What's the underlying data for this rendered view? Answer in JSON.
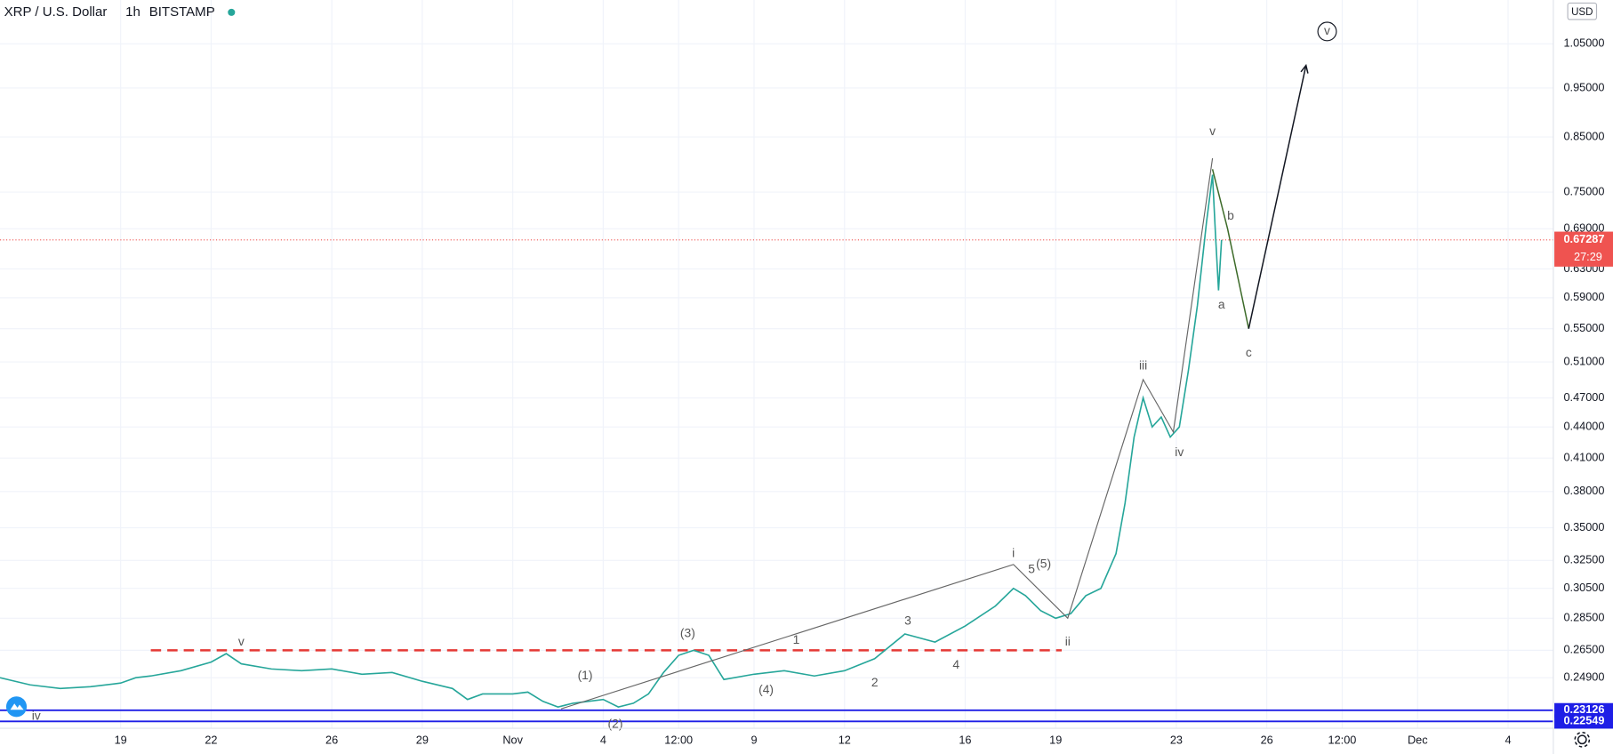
{
  "chart_data": {
    "type": "line",
    "symbol": "XRP / U.S. Dollar",
    "interval": "1h",
    "exchange": "BITSTAMP",
    "currency": "USD",
    "log_scale": true,
    "grid": true,
    "color": "#26a69a",
    "x": [
      0,
      1,
      2,
      3,
      4,
      4.5,
      5,
      6,
      7,
      7.5,
      8,
      9,
      10,
      11,
      12,
      13,
      14,
      15,
      15.5,
      16,
      17,
      17.5,
      18,
      18.5,
      19,
      20,
      20.5,
      21,
      21.5,
      22,
      22.5,
      23,
      23.5,
      24,
      25,
      26,
      27,
      28,
      29,
      30,
      31,
      32,
      33,
      33.6,
      34,
      34.5,
      35,
      35.5,
      36,
      36.5,
      37,
      37.3,
      37.6,
      37.9,
      38.2,
      38.5,
      38.8,
      39.1,
      39.4,
      39.7,
      40,
      40.2,
      40.3,
      40.4,
      40.5
    ],
    "values": [
      0.249,
      0.245,
      0.243,
      0.244,
      0.246,
      0.249,
      0.25,
      0.253,
      0.258,
      0.263,
      0.257,
      0.254,
      0.253,
      0.254,
      0.251,
      0.252,
      0.247,
      0.243,
      0.237,
      0.24,
      0.24,
      0.241,
      0.236,
      0.233,
      0.235,
      0.237,
      0.233,
      0.235,
      0.24,
      0.252,
      0.262,
      0.265,
      0.262,
      0.248,
      0.251,
      0.253,
      0.25,
      0.253,
      0.26,
      0.275,
      0.27,
      0.28,
      0.293,
      0.305,
      0.3,
      0.29,
      0.285,
      0.288,
      0.3,
      0.305,
      0.33,
      0.37,
      0.43,
      0.47,
      0.44,
      0.45,
      0.43,
      0.44,
      0.5,
      0.58,
      0.7,
      0.78,
      0.68,
      0.6,
      0.67287
    ],
    "xlim": [
      0,
      51.5
    ],
    "ylim": [
      0.222,
      1.16
    ],
    "xticks": [
      {
        "value": 4,
        "label": "19"
      },
      {
        "value": 7,
        "label": "22"
      },
      {
        "value": 11,
        "label": "26"
      },
      {
        "value": 14,
        "label": "29"
      },
      {
        "value": 17,
        "label": "Nov"
      },
      {
        "value": 20,
        "label": "4"
      },
      {
        "value": 22.5,
        "label": "12:00"
      },
      {
        "value": 25,
        "label": "9"
      },
      {
        "value": 28,
        "label": "12"
      },
      {
        "value": 32,
        "label": "16"
      },
      {
        "value": 35,
        "label": "19"
      },
      {
        "value": 39,
        "label": "23"
      },
      {
        "value": 42,
        "label": "26"
      },
      {
        "value": 44.5,
        "label": "12:00"
      },
      {
        "value": 47,
        "label": "Dec"
      },
      {
        "value": 50,
        "label": "4"
      }
    ],
    "yticks": [
      {
        "value": 1.05,
        "label": "1.05000"
      },
      {
        "value": 0.95,
        "label": "0.95000"
      },
      {
        "value": 0.85,
        "label": "0.85000"
      },
      {
        "value": 0.75,
        "label": "0.75000"
      },
      {
        "value": 0.69,
        "label": "0.69000"
      },
      {
        "value": 0.63,
        "label": "0.63000"
      },
      {
        "value": 0.59,
        "label": "0.59000"
      },
      {
        "value": 0.55,
        "label": "0.55000"
      },
      {
        "value": 0.51,
        "label": "0.51000"
      },
      {
        "value": 0.47,
        "label": "0.47000"
      },
      {
        "value": 0.44,
        "label": "0.44000"
      },
      {
        "value": 0.41,
        "label": "0.41000"
      },
      {
        "value": 0.38,
        "label": "0.38000"
      },
      {
        "value": 0.35,
        "label": "0.35000"
      },
      {
        "value": 0.325,
        "label": "0.32500"
      },
      {
        "value": 0.305,
        "label": "0.30500"
      },
      {
        "value": 0.285,
        "label": "0.28500"
      },
      {
        "value": 0.265,
        "label": "0.26500"
      },
      {
        "value": 0.249,
        "label": "0.24900"
      }
    ],
    "current_price": 0.67287,
    "countdown": "27:29",
    "levels": [
      0.23126,
      0.22549
    ],
    "resistance": {
      "value": 0.265,
      "x": [
        5,
        35.2
      ]
    },
    "wave_count": {
      "x": [
        18.6,
        33.6,
        35.4,
        37.9,
        38.9,
        40.2
      ],
      "y": [
        0.232,
        0.322,
        0.285,
        0.49,
        0.435,
        0.81
      ],
      "color": "#666"
    },
    "projection": {
      "x": [
        40.2,
        40.7,
        41.4
      ],
      "y": [
        0.79,
        0.69,
        0.55
      ],
      "color": "#3d6b2a"
    },
    "target": {
      "x": [
        41.4,
        43.3
      ],
      "y": [
        0.55,
        1.0
      ],
      "color": "#131722"
    },
    "annotations": [
      {
        "text": "v",
        "x": 8,
        "y": 0.27
      },
      {
        "text": "iv",
        "x": 1.2,
        "y": 0.228
      },
      {
        "text": "(1)",
        "x": 19.4,
        "y": 0.25
      },
      {
        "text": "(2)",
        "x": 20.4,
        "y": 0.224
      },
      {
        "text": "(3)",
        "x": 22.8,
        "y": 0.275
      },
      {
        "text": "(4)",
        "x": 25.4,
        "y": 0.242
      },
      {
        "text": "1",
        "x": 26.4,
        "y": 0.271
      },
      {
        "text": "2",
        "x": 29,
        "y": 0.246
      },
      {
        "text": "3",
        "x": 30.1,
        "y": 0.283
      },
      {
        "text": "4",
        "x": 31.7,
        "y": 0.256
      },
      {
        "text": "5",
        "x": 34.2,
        "y": 0.318
      },
      {
        "text": "(5)",
        "x": 34.6,
        "y": 0.322
      },
      {
        "text": "i",
        "x": 33.6,
        "y": 0.33
      },
      {
        "text": "ii",
        "x": 35.4,
        "y": 0.27
      },
      {
        "text": "iii",
        "x": 37.9,
        "y": 0.505
      },
      {
        "text": "iv",
        "x": 39.1,
        "y": 0.415
      },
      {
        "text": "v",
        "x": 40.2,
        "y": 0.86
      },
      {
        "text": "a",
        "x": 40.5,
        "y": 0.58
      },
      {
        "text": "b",
        "x": 40.8,
        "y": 0.71
      },
      {
        "text": "c",
        "x": 41.4,
        "y": 0.52
      },
      {
        "text": "v",
        "x": 44,
        "y": 1.08
      }
    ]
  }
}
